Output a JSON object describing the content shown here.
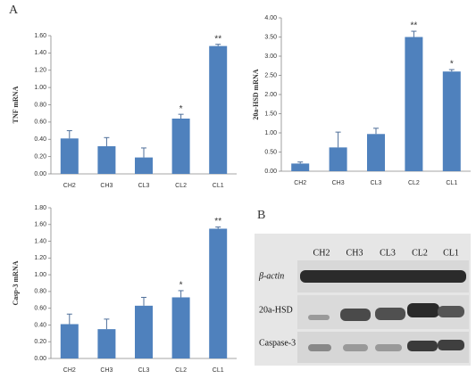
{
  "panel_labels": [
    "A",
    "B"
  ],
  "chart_data": [
    {
      "type": "bar",
      "ylabel": "TNF mRNA",
      "color": "#4f81bd",
      "categories": [
        "CH2",
        "CH3",
        "CL3",
        "CL2",
        "CL1"
      ],
      "values": [
        0.41,
        0.32,
        0.19,
        0.64,
        1.48
      ],
      "errors": [
        0.09,
        0.1,
        0.11,
        0.05,
        0.02
      ],
      "annotations": [
        {
          "x": "CL2",
          "text": "*"
        },
        {
          "x": "CL1",
          "text": "**"
        }
      ],
      "ylim": [
        0,
        1.6
      ],
      "yticks": [
        {
          "value": 0,
          "label": "0.00"
        },
        {
          "value": 0.2,
          "label": "0.20"
        },
        {
          "value": 0.4,
          "label": "0.40"
        },
        {
          "value": 0.6,
          "label": "0.60"
        },
        {
          "value": 0.8,
          "label": "0.80"
        },
        {
          "value": 1.0,
          "label": "1.00"
        },
        {
          "value": 1.2,
          "label": "1.20"
        },
        {
          "value": 1.4,
          "label": "1.40"
        },
        {
          "value": 1.6,
          "label": "1.60"
        }
      ]
    },
    {
      "type": "bar",
      "ylabel": "20a-HSD mRNA",
      "color": "#4f81bd",
      "categories": [
        "CH2",
        "CH3",
        "CL3",
        "CL2",
        "CL1"
      ],
      "values": [
        0.2,
        0.62,
        0.97,
        3.5,
        2.6
      ],
      "errors": [
        0.04,
        0.4,
        0.15,
        0.15,
        0.05
      ],
      "annotations": [
        {
          "x": "CL2",
          "text": "**"
        },
        {
          "x": "CL1",
          "text": "*"
        }
      ],
      "ylim": [
        0,
        4.0
      ],
      "yticks": [
        {
          "value": 0,
          "label": "0.00"
        },
        {
          "value": 0.5,
          "label": "0.50"
        },
        {
          "value": 1.0,
          "label": "1.00"
        },
        {
          "value": 1.5,
          "label": "1.50"
        },
        {
          "value": 2.0,
          "label": "2.00"
        },
        {
          "value": 2.5,
          "label": "2.50"
        },
        {
          "value": 3.0,
          "label": "3.00"
        },
        {
          "value": 3.5,
          "label": "3.50"
        },
        {
          "value": 4.0,
          "label": "4.00"
        }
      ]
    },
    {
      "type": "bar",
      "ylabel": "Casp-3 mRNA",
      "color": "#4f81bd",
      "categories": [
        "CH2",
        "CH3",
        "CL3",
        "CL2",
        "CL1"
      ],
      "values": [
        0.41,
        0.35,
        0.63,
        0.73,
        1.55
      ],
      "errors": [
        0.12,
        0.12,
        0.1,
        0.08,
        0.02
      ],
      "annotations": [
        {
          "x": "CL2",
          "text": "*"
        },
        {
          "x": "CL1",
          "text": "**"
        }
      ],
      "ylim": [
        0,
        1.8
      ],
      "yticks": [
        {
          "value": 0,
          "label": "0.00"
        },
        {
          "value": 0.2,
          "label": "0.20"
        },
        {
          "value": 0.4,
          "label": "0.40"
        },
        {
          "value": 0.6,
          "label": "0.60"
        },
        {
          "value": 0.8,
          "label": "0.80"
        },
        {
          "value": 1.0,
          "label": "1.00"
        },
        {
          "value": 1.2,
          "label": "1.20"
        },
        {
          "value": 1.4,
          "label": "1.40"
        },
        {
          "value": 1.6,
          "label": "1.60"
        },
        {
          "value": 1.8,
          "label": "1.80"
        }
      ]
    }
  ],
  "blot": {
    "lanes": [
      "CH2",
      "CH3",
      "CL3",
      "CL2",
      "CL1"
    ],
    "rows": [
      "β-actin",
      "20a-HSD",
      "Caspase-3"
    ]
  }
}
